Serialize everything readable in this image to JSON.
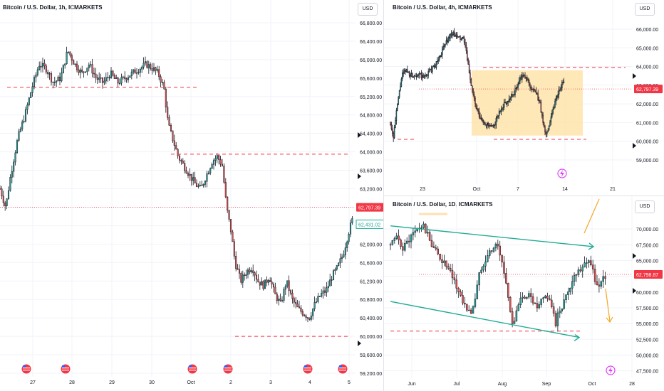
{
  "colors": {
    "up": "#26a69a",
    "down": "#ef5350",
    "candle_body": "#131722",
    "level": "#f23645",
    "range": "#ffe0a0",
    "channel": "#22ab94",
    "arrow": "#f5a623"
  },
  "chart_data": [
    {
      "id": "btc-1h",
      "type": "candlestick",
      "title": "Bitcoin / U.S. Dollar, 1h, ICMARKETS",
      "currency": "USD",
      "x_ticks": [
        "27",
        "28",
        "29",
        "30",
        "Oct",
        "2",
        "3",
        "4",
        "5"
      ],
      "y_ticks": [
        "66,800.00",
        "66,400.00",
        "66,000.00",
        "65,600.00",
        "65,200.00",
        "64,800.00",
        "64,400.00",
        "64,000.00",
        "63,600.00",
        "63,200.00",
        "62,800.00",
        "62,400.00",
        "62,000.00",
        "61,600.00",
        "61,200.00",
        "60,800.00",
        "60,400.00",
        "60,000.00",
        "59,600.00",
        "59,200.00"
      ],
      "ylim": [
        59200,
        66800
      ],
      "price_labels": [
        "62,797.39",
        "62,431.02"
      ],
      "current_price": 62797.39,
      "secondary_price": 62431.02,
      "levels": [
        65400,
        63950,
        60000
      ],
      "path": [
        [
          0,
          63200
        ],
        [
          8,
          62800
        ],
        [
          15,
          63500
        ],
        [
          25,
          64300
        ],
        [
          35,
          64800
        ],
        [
          45,
          65400
        ],
        [
          55,
          65900
        ],
        [
          65,
          65800
        ],
        [
          75,
          65500
        ],
        [
          85,
          65600
        ],
        [
          95,
          66200
        ],
        [
          105,
          65900
        ],
        [
          115,
          65700
        ],
        [
          125,
          65900
        ],
        [
          135,
          65600
        ],
        [
          145,
          65500
        ],
        [
          155,
          65700
        ],
        [
          165,
          65500
        ],
        [
          175,
          65600
        ],
        [
          185,
          65700
        ],
        [
          195,
          65800
        ],
        [
          205,
          65900
        ],
        [
          215,
          65800
        ],
        [
          222,
          65700
        ],
        [
          230,
          65400
        ],
        [
          236,
          64600
        ],
        [
          242,
          64300
        ],
        [
          250,
          63900
        ],
        [
          258,
          63700
        ],
        [
          266,
          63500
        ],
        [
          274,
          63300
        ],
        [
          282,
          63200
        ],
        [
          290,
          63500
        ],
        [
          298,
          63800
        ],
        [
          305,
          63900
        ],
        [
          312,
          63700
        ],
        [
          318,
          62800
        ],
        [
          324,
          62300
        ],
        [
          330,
          61600
        ],
        [
          338,
          61200
        ],
        [
          346,
          61400
        ],
        [
          354,
          61500
        ],
        [
          362,
          61200
        ],
        [
          370,
          61100
        ],
        [
          378,
          61300
        ],
        [
          386,
          60900
        ],
        [
          394,
          60700
        ],
        [
          402,
          61200
        ],
        [
          410,
          60800
        ],
        [
          418,
          60600
        ],
        [
          426,
          60500
        ],
        [
          434,
          60400
        ],
        [
          442,
          60700
        ],
        [
          450,
          60900
        ],
        [
          458,
          61000
        ],
        [
          466,
          61300
        ],
        [
          474,
          61500
        ],
        [
          482,
          61800
        ],
        [
          490,
          62300
        ],
        [
          496,
          62600
        ]
      ],
      "volatility": 150
    },
    {
      "id": "btc-4h",
      "type": "candlestick",
      "title": "Bitcoin / U.S. Dollar, 4h, ICMARKETS",
      "currency": "USD",
      "x_ticks": [
        "23",
        "Oct",
        "7",
        "14",
        "21"
      ],
      "y_ticks": [
        "66,000.00",
        "65,000.00",
        "64,000.00",
        "63,000.00",
        "62,000.00",
        "61,000.00",
        "60,000.00",
        "59,000.00"
      ],
      "ylim": [
        58500,
        66800
      ],
      "price_labels": [
        "62,797.39"
      ],
      "current_price": 62797.39,
      "levels": [
        63950,
        60100
      ],
      "path": [
        [
          0,
          61000
        ],
        [
          4,
          60200
        ],
        [
          10,
          62000
        ],
        [
          16,
          63500
        ],
        [
          22,
          63800
        ],
        [
          30,
          63500
        ],
        [
          38,
          63600
        ],
        [
          46,
          63400
        ],
        [
          54,
          63700
        ],
        [
          62,
          64000
        ],
        [
          70,
          64600
        ],
        [
          78,
          65300
        ],
        [
          86,
          65800
        ],
        [
          92,
          65600
        ],
        [
          98,
          65500
        ],
        [
          104,
          65400
        ],
        [
          108,
          64300
        ],
        [
          114,
          62900
        ],
        [
          120,
          61800
        ],
        [
          126,
          61200
        ],
        [
          132,
          61000
        ],
        [
          138,
          60800
        ],
        [
          144,
          60700
        ],
        [
          150,
          61300
        ],
        [
          156,
          61800
        ],
        [
          162,
          62100
        ],
        [
          168,
          62300
        ],
        [
          174,
          62600
        ],
        [
          180,
          63200
        ],
        [
          186,
          63500
        ],
        [
          192,
          63300
        ],
        [
          198,
          62800
        ],
        [
          204,
          62600
        ],
        [
          210,
          62000
        ],
        [
          214,
          61000
        ],
        [
          218,
          60300
        ],
        [
          222,
          60800
        ],
        [
          228,
          61700
        ],
        [
          234,
          62500
        ],
        [
          240,
          63000
        ],
        [
          244,
          63100
        ]
      ],
      "volatility": 250
    },
    {
      "id": "btc-1d",
      "type": "candlestick",
      "title": "Bitcoin / U.S. Dollar, 1D, ICMARKETS",
      "currency": "USD",
      "x_ticks": [
        "Jun",
        "Jul",
        "Aug",
        "Sep",
        "Oct",
        "28"
      ],
      "y_ticks": [
        "70,000.00",
        "67,500.00",
        "65,000.00",
        "62,500.00",
        "60,000.00",
        "57,500.00",
        "55,000.00",
        "52,500.00",
        "50,000.00",
        "47,500.00"
      ],
      "ylim": [
        47000,
        72500
      ],
      "price_labels": [
        "62,798.87"
      ],
      "current_price": 62798.87,
      "levels": [
        53800
      ],
      "channel_upper": [
        [
          70500,
          0
        ],
        [
          67200,
          285
        ]
      ],
      "channel_lower": [
        [
          58500,
          0
        ],
        [
          52800,
          265
        ]
      ],
      "path": [
        [
          0,
          67500
        ],
        [
          10,
          68500
        ],
        [
          18,
          67000
        ],
        [
          26,
          68300
        ],
        [
          36,
          69800
        ],
        [
          46,
          70500
        ],
        [
          56,
          68000
        ],
        [
          66,
          66000
        ],
        [
          76,
          64500
        ],
        [
          86,
          62500
        ],
        [
          96,
          60000
        ],
        [
          106,
          57500
        ],
        [
          112,
          56500
        ],
        [
          118,
          58500
        ],
        [
          126,
          63500
        ],
        [
          134,
          65500
        ],
        [
          142,
          66800
        ],
        [
          150,
          67500
        ],
        [
          156,
          65000
        ],
        [
          162,
          61500
        ],
        [
          168,
          57500
        ],
        [
          172,
          54500
        ],
        [
          176,
          56500
        ],
        [
          184,
          59000
        ],
        [
          192,
          59700
        ],
        [
          200,
          58500
        ],
        [
          206,
          57000
        ],
        [
          212,
          58500
        ],
        [
          220,
          59500
        ],
        [
          226,
          58000
        ],
        [
          232,
          54500
        ],
        [
          236,
          56800
        ],
        [
          244,
          58500
        ],
        [
          252,
          61000
        ],
        [
          260,
          63000
        ],
        [
          268,
          64000
        ],
        [
          276,
          65300
        ],
        [
          282,
          64500
        ],
        [
          288,
          61500
        ],
        [
          294,
          61000
        ],
        [
          300,
          62300
        ],
        [
          304,
          62700
        ]
      ],
      "volatility": 1200
    }
  ],
  "annotations": {
    "up_arrow_color": "#f5a623",
    "lightning_icon": "lightning-icon",
    "flag_icon": "us-flag-icon"
  }
}
